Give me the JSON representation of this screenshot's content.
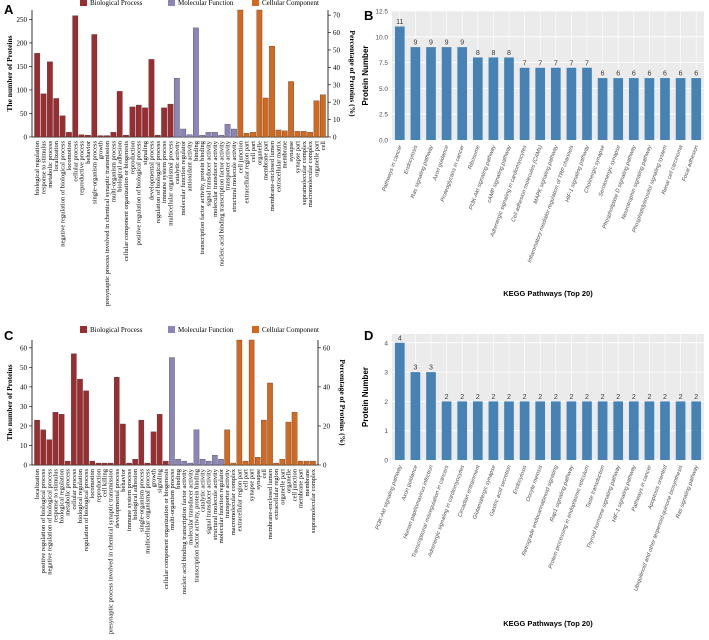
{
  "panels": {
    "A": {
      "letter": "A"
    },
    "B": {
      "letter": "B"
    },
    "C": {
      "letter": "C"
    },
    "D": {
      "letter": "D"
    }
  },
  "legend": {
    "bp": "Biological Process",
    "mf": "Molecular Function",
    "cc": "Cellular Component",
    "colors": {
      "bp": "#9b2d30",
      "mf": "#8b85b8",
      "cc": "#d2691e",
      "kegg": "#4682b4"
    }
  },
  "chart_data": [
    {
      "id": "A",
      "type": "bar",
      "ylabel": "The number of Proteins",
      "y2label": "Percentage of Proteins (%)",
      "ylim": [
        0,
        270
      ],
      "yticks": [
        0,
        50,
        100,
        150,
        200,
        250
      ],
      "y2lim": [
        0,
        72.97
      ],
      "y2ticks": [
        0,
        10,
        20,
        30,
        40,
        50,
        60,
        70
      ],
      "categories": [
        {
          "label": "biological regulation",
          "value": 178,
          "group": "bp"
        },
        {
          "label": "response to stimulus",
          "value": 92,
          "group": "bp"
        },
        {
          "label": "metabolic process",
          "value": 160,
          "group": "bp"
        },
        {
          "label": "localization",
          "value": 82,
          "group": "bp"
        },
        {
          "label": "negative regulation of biological process",
          "value": 45,
          "group": "bp"
        },
        {
          "label": "locomotion",
          "value": 10,
          "group": "bp"
        },
        {
          "label": "cellular process",
          "value": 258,
          "group": "bp"
        },
        {
          "label": "reproductive process",
          "value": 5,
          "group": "bp"
        },
        {
          "label": "behavior",
          "value": 4,
          "group": "bp"
        },
        {
          "label": "single-organism process",
          "value": 218,
          "group": "bp"
        },
        {
          "label": "growth",
          "value": 3,
          "group": "bp"
        },
        {
          "label": "presynaptic process involved in chemical synaptic transmission",
          "value": 3,
          "group": "bp"
        },
        {
          "label": "multi-organism process",
          "value": 10,
          "group": "bp"
        },
        {
          "label": "biological adhesion",
          "value": 97,
          "group": "bp"
        },
        {
          "label": "cellular component organization or biogenesis",
          "value": 4,
          "group": "bp"
        },
        {
          "label": "reproduction",
          "value": 64,
          "group": "bp"
        },
        {
          "label": "positive regulation of biological process",
          "value": 68,
          "group": "bp"
        },
        {
          "label": "signaling",
          "value": 62,
          "group": "bp"
        },
        {
          "label": "developmental process",
          "value": 165,
          "group": "bp"
        },
        {
          "label": "regulation of biological process",
          "value": 4,
          "group": "bp"
        },
        {
          "label": "immune system process",
          "value": 62,
          "group": "bp"
        },
        {
          "label": "multicellular organismal process",
          "value": 70,
          "group": "bp"
        },
        {
          "label": "catalytic activity",
          "value": 125,
          "group": "mf"
        },
        {
          "label": "molecular function regulator",
          "value": 17,
          "group": "mf"
        },
        {
          "label": "antioxidant activity",
          "value": 5,
          "group": "mf"
        },
        {
          "label": "binding",
          "value": 232,
          "group": "mf"
        },
        {
          "label": "transcription factor activity, protein binding",
          "value": 4,
          "group": "mf"
        },
        {
          "label": "signal transducer activity",
          "value": 10,
          "group": "mf"
        },
        {
          "label": "molecular transducer activity",
          "value": 10,
          "group": "mf"
        },
        {
          "label": "nucleic acid binding transcription factor activity",
          "value": 4,
          "group": "mf"
        },
        {
          "label": "transporter activity",
          "value": 27,
          "group": "mf"
        },
        {
          "label": "structural molecule activity",
          "value": 17,
          "group": "mf"
        },
        {
          "label": "cell junction",
          "value": 270,
          "group": "cc"
        },
        {
          "label": "extracellular region part",
          "value": 8,
          "group": "cc"
        },
        {
          "label": "cell part",
          "value": 10,
          "group": "cc"
        },
        {
          "label": "organelle",
          "value": 270,
          "group": "cc"
        },
        {
          "label": "membrane part",
          "value": 83,
          "group": "cc"
        },
        {
          "label": "membrane-enclosed lumen",
          "value": 193,
          "group": "cc"
        },
        {
          "label": "extracellular matrix",
          "value": 15,
          "group": "cc"
        },
        {
          "label": "membrane",
          "value": 13,
          "group": "cc"
        },
        {
          "label": "synapse",
          "value": 118,
          "group": "cc"
        },
        {
          "label": "synapse part",
          "value": 12,
          "group": "cc"
        },
        {
          "label": "supramolecular complex",
          "value": 12,
          "group": "cc"
        },
        {
          "label": "macromolecular complex",
          "value": 10,
          "group": "cc"
        },
        {
          "label": "organelle part",
          "value": 77,
          "group": "cc"
        },
        {
          "label": "cell",
          "value": 90,
          "group": "cc"
        }
      ]
    },
    {
      "id": "B",
      "type": "bar",
      "ylabel": "Protein Number",
      "xlabel": "KEGG Pathways (Top 20)",
      "ylim": [
        0,
        12.5
      ],
      "yticks": [
        0,
        2.5,
        5.0,
        7.5,
        10.0,
        12.5
      ],
      "ytick_labels": [
        "0.0",
        "2.5",
        "5.0",
        "7.5",
        "10.0",
        "12.5"
      ],
      "categories": [
        "Pathways in cancer",
        "Endocytosis",
        "Ras signaling pathway",
        "Axon guidance",
        "Proteoglycans in cancer",
        "Ribosome",
        "PI3K-Akt signaling pathway",
        "cAMP signaling pathway",
        "Adrenergic signaling in cardiomyocytes",
        "Cell adhesion molecules (CAMs)",
        "MAPK signaling pathway",
        "Inflammatory mediator regulation of TRP channels",
        "HIF-1 signaling pathway",
        "Cholinergic synapse",
        "Serotonergic synapse",
        "Phospholipase D signaling pathway",
        "Neurotrophin signaling pathway",
        "Phosphatidylinositol signaling system",
        "Renal cell carcinoma",
        "Focal adhesion"
      ],
      "values": [
        11,
        9,
        9,
        9,
        9,
        8,
        8,
        8,
        7,
        7,
        7,
        7,
        7,
        6,
        6,
        6,
        6,
        6,
        6,
        6
      ],
      "value_labels": [
        "11",
        "9",
        "9",
        "9",
        "9",
        "8",
        "8",
        "8",
        "7",
        "7",
        "7",
        "7",
        "7",
        "6",
        "6",
        "6",
        "6",
        "6",
        "6",
        "6"
      ]
    },
    {
      "id": "C",
      "type": "bar",
      "ylabel": "The number of Proteins",
      "y2label": "Percentage of Proteins (%)",
      "ylim": [
        0,
        64
      ],
      "yticks": [
        0,
        10,
        20,
        30,
        40,
        50,
        60
      ],
      "y2lim": [
        0,
        64
      ],
      "y2ticks": [
        0,
        20,
        40,
        60
      ],
      "categories": [
        {
          "label": "localization",
          "value": 23,
          "group": "bp"
        },
        {
          "label": "positive regulation of biological process",
          "value": 18,
          "group": "bp"
        },
        {
          "label": "negative regulation of biological process",
          "value": 13,
          "group": "bp"
        },
        {
          "label": "response to stimulus",
          "value": 27,
          "group": "bp"
        },
        {
          "label": "biological regulation",
          "value": 26,
          "group": "bp"
        },
        {
          "label": "metabolic process",
          "value": 2,
          "group": "bp"
        },
        {
          "label": "cellular process",
          "value": 57,
          "group": "bp"
        },
        {
          "label": "biological regulation",
          "value": 44,
          "group": "bp"
        },
        {
          "label": "regulation of biological process",
          "value": 38,
          "group": "bp"
        },
        {
          "label": "locomotion",
          "value": 2,
          "group": "bp"
        },
        {
          "label": "reproduction",
          "value": 1,
          "group": "bp"
        },
        {
          "label": "cell killing",
          "value": 1,
          "group": "bp"
        },
        {
          "label": "presynaptic process involved in chemical synaptic transmission",
          "value": 1,
          "group": "bp"
        },
        {
          "label": "developmental process",
          "value": 45,
          "group": "bp"
        },
        {
          "label": "behavior",
          "value": 21,
          "group": "bp"
        },
        {
          "label": "immune system process",
          "value": 1,
          "group": "bp"
        },
        {
          "label": "biological adhesion",
          "value": 3,
          "group": "bp"
        },
        {
          "label": "single-organism process",
          "value": 23,
          "group": "bp"
        },
        {
          "label": "multicellular organismal process",
          "value": 1,
          "group": "bp"
        },
        {
          "label": "growth",
          "value": 17,
          "group": "bp"
        },
        {
          "label": "signaling",
          "value": 26,
          "group": "bp"
        },
        {
          "label": "cellular component organization or biogenesis",
          "value": 2,
          "group": "bp"
        },
        {
          "label": "multi-organism process",
          "value": 55,
          "group": "mf"
        },
        {
          "label": "binding",
          "value": 3,
          "group": "mf"
        },
        {
          "label": "nucleic acid binding transcription factor activity",
          "value": 2,
          "group": "mf"
        },
        {
          "label": "molecular transducer activity",
          "value": 1,
          "group": "mf"
        },
        {
          "label": "transcription factor activity, protein binding",
          "value": 18,
          "group": "mf"
        },
        {
          "label": "catalytic activity",
          "value": 3,
          "group": "mf"
        },
        {
          "label": "signal transducer activity",
          "value": 2,
          "group": "mf"
        },
        {
          "label": "structural molecule activity",
          "value": 5,
          "group": "mf"
        },
        {
          "label": "molecular function regulator",
          "value": 3,
          "group": "mf"
        },
        {
          "label": "transporter activity",
          "value": 18,
          "group": "cc"
        },
        {
          "label": "macromolecular complex",
          "value": 1,
          "group": "cc"
        },
        {
          "label": "extracellular region part",
          "value": 64,
          "group": "cc"
        },
        {
          "label": "cell part",
          "value": 2,
          "group": "cc"
        },
        {
          "label": "synapse part",
          "value": 64,
          "group": "cc"
        },
        {
          "label": "synapse",
          "value": 4,
          "group": "cc"
        },
        {
          "label": "cell",
          "value": 23,
          "group": "cc"
        },
        {
          "label": "membrane-enclosed lumen",
          "value": 42,
          "group": "cc"
        },
        {
          "label": "extracellular region",
          "value": 1,
          "group": "cc"
        },
        {
          "label": "organelle part",
          "value": 3,
          "group": "cc"
        },
        {
          "label": "organelle",
          "value": 22,
          "group": "cc"
        },
        {
          "label": "cell junction",
          "value": 27,
          "group": "cc"
        },
        {
          "label": "membrane part",
          "value": 2,
          "group": "cc"
        },
        {
          "label": "membrane",
          "value": 2,
          "group": "cc"
        },
        {
          "label": "supramolecular complex",
          "value": 2,
          "group": "cc"
        }
      ]
    },
    {
      "id": "D",
      "type": "bar",
      "ylabel": "Protein Number",
      "xlabel": "KEGG Pathways (Top 20)",
      "ylim": [
        0,
        4.3
      ],
      "yticks": [
        0,
        1,
        2,
        3,
        4
      ],
      "ytick_labels": [
        "0",
        "1",
        "2",
        "3",
        "4"
      ],
      "categories": [
        "PI3K-Akt signaling pathway",
        "Axon guidance",
        "Human papillomavirus infection",
        "Transcriptional misregulation in cancers",
        "Adrenergic signaling in cardiomyocytes",
        "Circadian entrainment",
        "Glutamatergic synapse",
        "Gastric acid secretion",
        "Endocytosis",
        "Oocyte meiosis",
        "Retrograde endocannabinoid signaling",
        "Rap1 signaling pathway",
        "Protein processing in endoplasmic reticulum",
        "Taste transduction",
        "Thyroid hormone signaling pathway",
        "HIF-1 signaling pathway",
        "Pathways in cancer",
        "Apoptosis oriented",
        "Ubiquitinoid and other terpenoid-quinone biosynthesis",
        "Ras signaling pathway"
      ],
      "values": [
        4,
        3,
        3,
        2,
        2,
        2,
        2,
        2,
        2,
        2,
        2,
        2,
        2,
        2,
        2,
        2,
        2,
        2,
        2,
        2
      ],
      "value_labels": [
        "4",
        "3",
        "3",
        "2",
        "2",
        "2",
        "2",
        "2",
        "2",
        "2",
        "2",
        "2",
        "2",
        "2",
        "2",
        "2",
        "2",
        "2",
        "2",
        "2"
      ]
    }
  ]
}
